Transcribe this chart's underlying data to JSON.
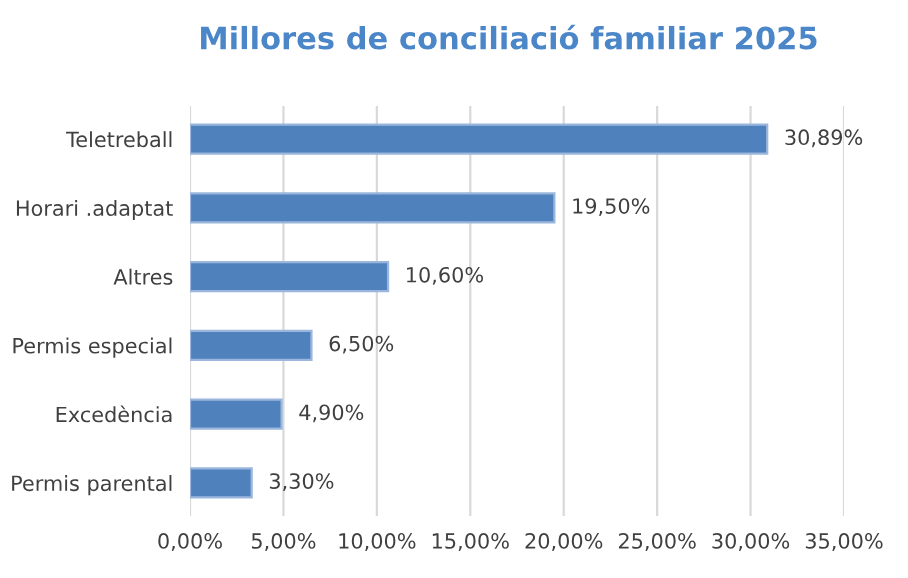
{
  "chart_data": {
    "type": "bar",
    "orientation": "horizontal",
    "title": "Millores de conciliació familiar 2025",
    "categories": [
      "Teletreball",
      "Horari .adaptat",
      "Altres",
      "Permis especial",
      "Excedència",
      "Permis parental"
    ],
    "values": [
      30.89,
      19.5,
      10.6,
      6.5,
      4.9,
      3.3
    ],
    "value_labels": [
      "30,89%",
      "19,50%",
      "10,60%",
      "6,50%",
      "4,90%",
      "3,30%"
    ],
    "color": "#4f81bd",
    "xlim": [
      0,
      35
    ],
    "xticks": [
      {
        "value": 0,
        "label": "0,00%"
      },
      {
        "value": 5,
        "label": "5,00%"
      },
      {
        "value": 10,
        "label": "10,00%"
      },
      {
        "value": 15,
        "label": "15,00%"
      },
      {
        "value": 20,
        "label": "20,00%"
      },
      {
        "value": 25,
        "label": "25,00%"
      },
      {
        "value": 30,
        "label": "30,00%"
      },
      {
        "value": 35,
        "label": "35,00%"
      }
    ],
    "grid": "x"
  }
}
